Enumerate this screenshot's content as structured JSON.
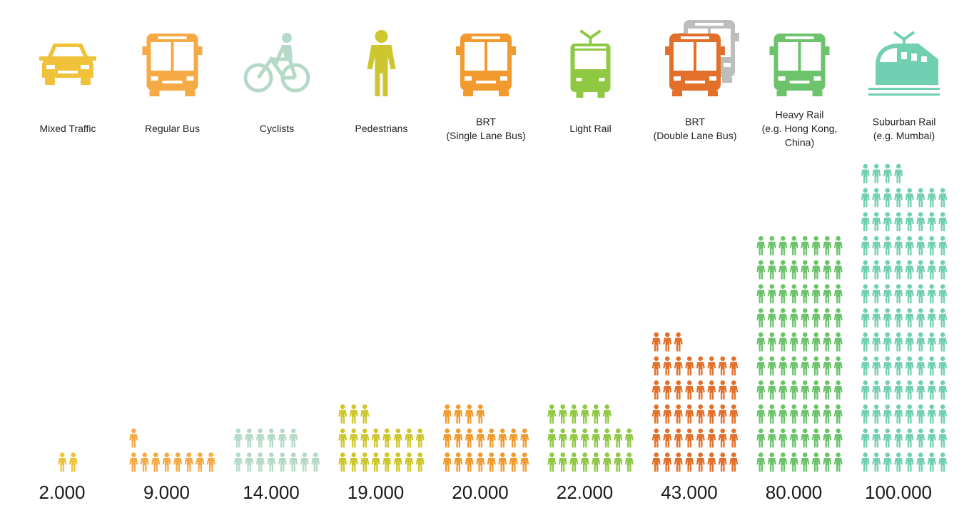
{
  "chart_data": {
    "type": "pictograph",
    "categories": [
      "Mixed Traffic",
      "Regular Bus",
      "Cyclists",
      "Pedestrians",
      "BRT\n(Single Lane Bus)",
      "Light Rail",
      "BRT\n(Double Lane Bus)",
      "Heavy Rail\n(e.g. Hong Kong,\nChina)",
      "Suburban Rail\n(e.g. Mumbai)"
    ],
    "values": [
      2000,
      9000,
      14000,
      19000,
      20000,
      22000,
      43000,
      80000,
      100000
    ],
    "value_labels": [
      "2.000",
      "9.000",
      "14.000",
      "19.000",
      "20.000",
      "22.000",
      "43.000",
      "80.000",
      "100.000"
    ],
    "colors": [
      "#efc23a",
      "#f5aa45",
      "#b5d9c7",
      "#cdc62e",
      "#f29a2e",
      "#8fc843",
      "#e2702a",
      "#6cc36c",
      "#72d0b2"
    ]
  }
}
